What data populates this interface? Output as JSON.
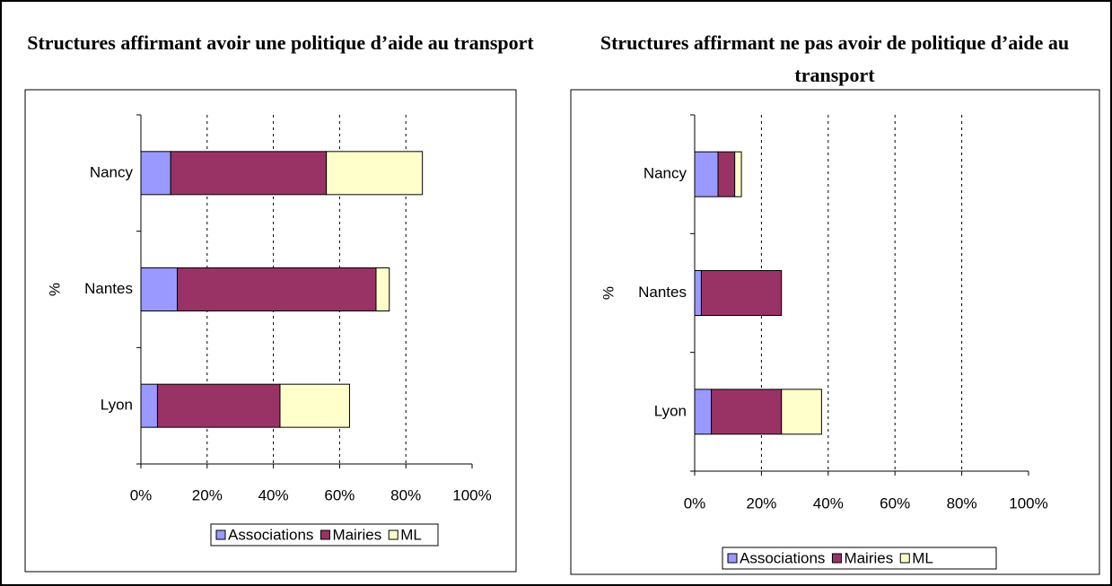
{
  "chart_data": [
    {
      "type": "bar",
      "orientation": "horizontal",
      "stacked": true,
      "title": "Structures affirmant avoir une politique d’aide au transport",
      "ylabel": "%",
      "categories": [
        "Nancy",
        "Nantes",
        "Lyon"
      ],
      "series": [
        {
          "name": "Associations",
          "color": "#9999ff",
          "values": [
            9,
            11,
            5
          ]
        },
        {
          "name": "Mairies",
          "color": "#993366",
          "values": [
            47,
            60,
            37
          ]
        },
        {
          "name": "ML",
          "color": "#ffffcc",
          "values": [
            29,
            4,
            21
          ]
        }
      ],
      "xlim": [
        0,
        100
      ],
      "xticks": [
        {
          "value": 0,
          "label": "0%"
        },
        {
          "value": 20,
          "label": "20%"
        },
        {
          "value": 40,
          "label": "40%"
        },
        {
          "value": 60,
          "label": "60%"
        },
        {
          "value": 80,
          "label": "80%"
        },
        {
          "value": 100,
          "label": "100%"
        }
      ],
      "grid": true,
      "legend": "bottom"
    },
    {
      "type": "bar",
      "orientation": "horizontal",
      "stacked": true,
      "title": "Structures affirmant ne pas avoir de politique d’aide au transport",
      "ylabel": "%",
      "categories": [
        "Nancy",
        "Nantes",
        "Lyon"
      ],
      "series": [
        {
          "name": "Associations",
          "color": "#9999ff",
          "values": [
            7,
            2,
            5
          ]
        },
        {
          "name": "Mairies",
          "color": "#993366",
          "values": [
            5,
            24,
            21
          ]
        },
        {
          "name": "ML",
          "color": "#ffffcc",
          "values": [
            2,
            0,
            12
          ]
        }
      ],
      "xlim": [
        0,
        100
      ],
      "xticks": [
        {
          "value": 0,
          "label": "0%"
        },
        {
          "value": 20,
          "label": "20%"
        },
        {
          "value": 40,
          "label": "40%"
        },
        {
          "value": 60,
          "label": "60%"
        },
        {
          "value": 80,
          "label": "80%"
        },
        {
          "value": 100,
          "label": "100%"
        }
      ],
      "grid": true,
      "legend": "bottom"
    }
  ]
}
